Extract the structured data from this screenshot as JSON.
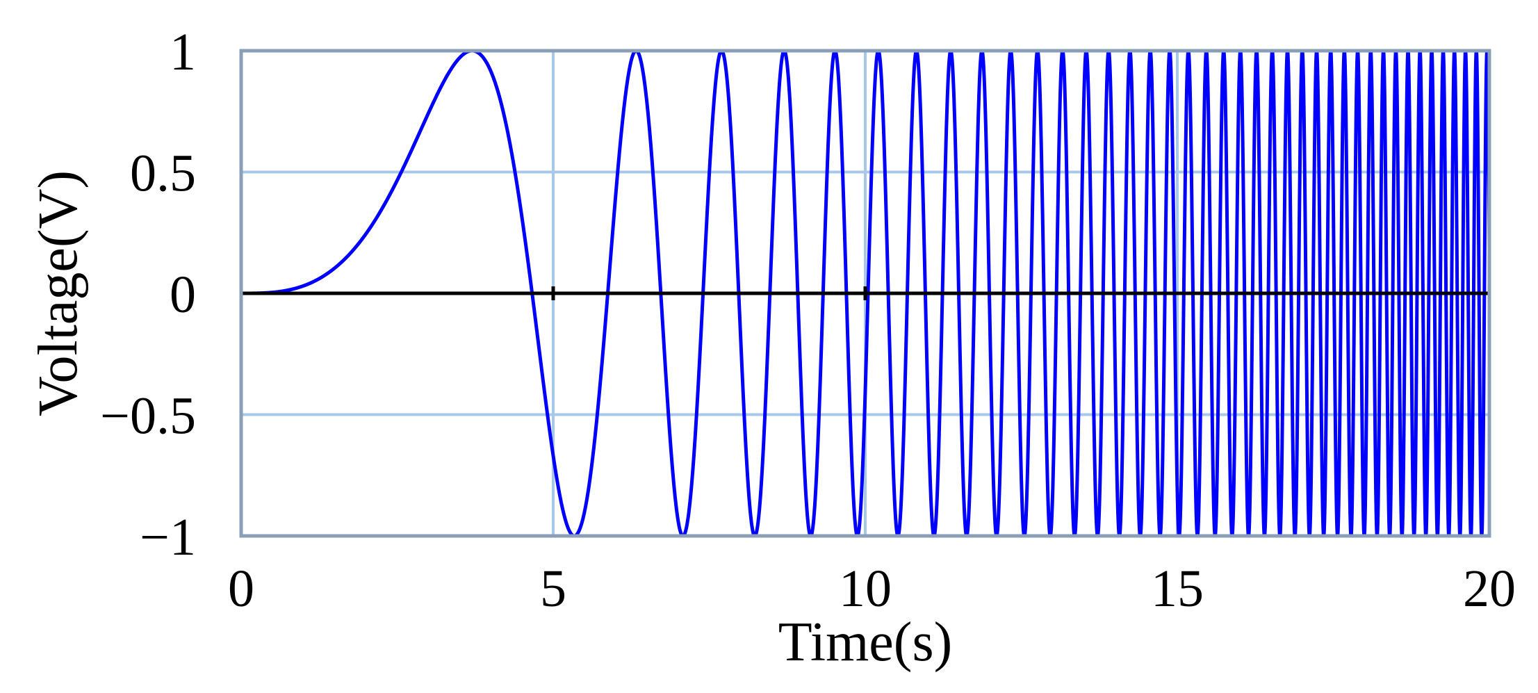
{
  "chart_data": {
    "type": "line",
    "xlabel": "Time(s)",
    "ylabel": "Voltage(V)",
    "xlim": [
      0,
      20
    ],
    "ylim": [
      -1,
      1
    ],
    "x_ticks": [
      0,
      5,
      10,
      15,
      20
    ],
    "x_tick_labels": [
      "0",
      "5",
      "10",
      "15",
      "20"
    ],
    "y_ticks": [
      1,
      0.5,
      0,
      -0.5,
      -1
    ],
    "y_tick_labels": [
      "1",
      "0.5",
      "0",
      "−0.5",
      "−1"
    ],
    "grid": true,
    "legend": "none",
    "series": [
      {
        "kind": "chirp",
        "function": "sin(c * t^3)",
        "c": 0.031,
        "t_range": [
          0,
          20
        ],
        "color": "#0000ff"
      },
      {
        "kind": "constant",
        "y": 0,
        "t_range": [
          0,
          20
        ],
        "color": "#000000"
      }
    ]
  },
  "colors": {
    "grid": "#a8c8ea",
    "frame": "#8a9fb7",
    "signal": "#0000ff",
    "zero_line": "#000000"
  }
}
